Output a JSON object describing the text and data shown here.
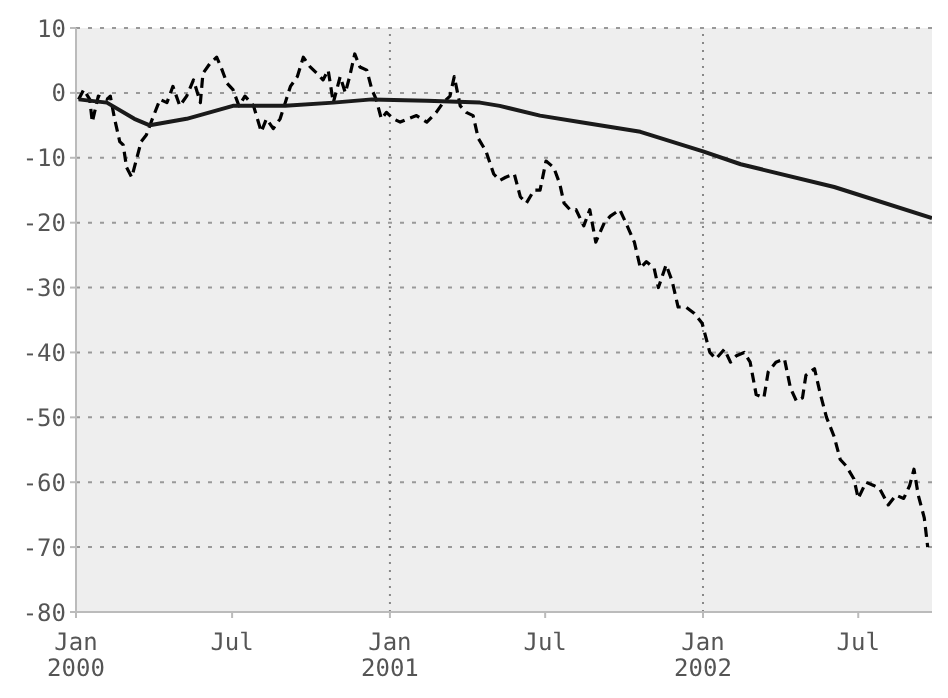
{
  "chart_data": {
    "type": "line",
    "xlim": [
      "2000-01-01",
      "2002-09-25"
    ],
    "ylim": [
      -80,
      10
    ],
    "xticks": [
      {
        "value": "2000-01-01",
        "label": "Jan\n2000"
      },
      {
        "value": "2000-07-01",
        "label": "Jul"
      },
      {
        "value": "2001-01-01",
        "label": "Jan\n2001"
      },
      {
        "value": "2001-07-01",
        "label": "Jul"
      },
      {
        "value": "2002-01-01",
        "label": "Jan\n2002"
      },
      {
        "value": "2002-07-01",
        "label": "Jul"
      }
    ],
    "yticks": [
      -80,
      -70,
      -60,
      -50,
      -40,
      -30,
      -20,
      -10,
      0,
      10
    ],
    "grid": "y",
    "ref_lines": [
      {
        "axis": "x",
        "value": "2001-01-01",
        "label": null,
        "color": "#888888",
        "line_style": "dotted"
      },
      {
        "axis": "x",
        "value": "2002-01-01",
        "label": null,
        "color": "#888888",
        "line_style": "dotted"
      }
    ],
    "series": [
      {
        "color": "#000000",
        "line_style": "dashed",
        "x": [
          "2000-01-04",
          "2000-01-10",
          "2000-01-17",
          "2000-01-20",
          "2000-01-27",
          "2000-02-06",
          "2000-02-10",
          "2000-02-15",
          "2000-02-21",
          "2000-02-25",
          "2000-02-29",
          "2000-03-06",
          "2000-03-12",
          "2000-03-17",
          "2000-03-23",
          "2000-03-30",
          "2000-04-08",
          "2000-04-16",
          "2000-04-23",
          "2000-05-01",
          "2000-05-09",
          "2000-05-17",
          "2000-05-25",
          "2000-05-28",
          "2000-06-05",
          "2000-06-13",
          "2000-06-18",
          "2000-06-25",
          "2000-07-02",
          "2000-07-09",
          "2000-07-16",
          "2000-07-26",
          "2000-08-04",
          "2000-08-10",
          "2000-08-18",
          "2000-08-26",
          "2000-09-01",
          "2000-09-07",
          "2000-09-15",
          "2000-09-22",
          "2000-09-30",
          "2000-10-08",
          "2000-10-15",
          "2000-10-21",
          "2000-10-27",
          "2000-11-04",
          "2000-11-10",
          "2000-11-15",
          "2000-11-21",
          "2000-11-27",
          "2000-12-05",
          "2000-12-11",
          "2000-12-16",
          "2000-12-22",
          "2000-12-28",
          "2001-01-05",
          "2001-01-13",
          "2001-01-22",
          "2001-02-01",
          "2001-02-13",
          "2001-02-24",
          "2001-03-04",
          "2001-03-12",
          "2001-03-17",
          "2001-03-24",
          "2001-03-31",
          "2001-04-08",
          "2001-04-14",
          "2001-04-23",
          "2001-05-02",
          "2001-05-09",
          "2001-05-16",
          "2001-05-26",
          "2001-06-02",
          "2001-06-09",
          "2001-06-18",
          "2001-06-25",
          "2001-07-02",
          "2001-07-11",
          "2001-07-18",
          "2001-07-23",
          "2001-07-30",
          "2001-08-06",
          "2001-08-15",
          "2001-08-22",
          "2001-08-29",
          "2001-09-08",
          "2001-09-15",
          "2001-09-26",
          "2001-10-03",
          "2001-10-13",
          "2001-10-20",
          "2001-10-27",
          "2001-11-05",
          "2001-11-10",
          "2001-11-19",
          "2001-11-26",
          "2001-12-03",
          "2001-12-12",
          "2001-12-22",
          "2001-12-31",
          "2002-01-09",
          "2002-01-16",
          "2002-01-26",
          "2002-02-02",
          "2002-02-09",
          "2002-02-18",
          "2002-02-25",
          "2002-03-04",
          "2002-03-13",
          "2002-03-18",
          "2002-03-27",
          "2002-04-06",
          "2002-04-13",
          "2002-04-20",
          "2002-04-27",
          "2002-05-01",
          "2002-05-11",
          "2002-05-18",
          "2002-05-25",
          "2002-06-03",
          "2002-06-10",
          "2002-06-17",
          "2002-06-26",
          "2002-07-01",
          "2002-07-10",
          "2002-07-19",
          "2002-07-26",
          "2002-08-05",
          "2002-08-14",
          "2002-08-23",
          "2002-08-30",
          "2002-09-04",
          "2002-09-09",
          "2002-09-16",
          "2002-09-20"
        ],
        "values": [
          -1,
          0.5,
          -1,
          -4.5,
          -0.5,
          -1,
          -0.5,
          -4,
          -7.5,
          -8,
          -11.5,
          -13,
          -10,
          -7.5,
          -6.5,
          -4,
          -1,
          -1.5,
          1,
          -2,
          -0.5,
          2,
          -1.5,
          3,
          4.5,
          5.5,
          4,
          1.5,
          0.5,
          -2,
          -0.5,
          -2,
          -6,
          -4,
          -5.5,
          -4,
          -1.5,
          1,
          2.5,
          5.5,
          4,
          3,
          2,
          3.5,
          -1.5,
          2.5,
          0,
          2.5,
          6,
          4,
          3.5,
          0.5,
          -1,
          -4,
          -3,
          -4,
          -4.5,
          -4,
          -3.5,
          -4.5,
          -3,
          -1.5,
          -0.5,
          2.5,
          -2,
          -3,
          -3.5,
          -7,
          -9,
          -12.5,
          -13.5,
          -13,
          -12.5,
          -16,
          -17,
          -15,
          -15,
          -10.5,
          -11.5,
          -14,
          -17,
          -18,
          -18,
          -20.5,
          -18,
          -23,
          -20,
          -19,
          -18,
          -20,
          -23,
          -27,
          -26,
          -27,
          -30,
          -26.5,
          -29,
          -33,
          -33,
          -34,
          -35.5,
          -40,
          -41,
          -39.5,
          -41.5,
          -40.5,
          -40,
          -41.5,
          -46.5,
          -47,
          -43,
          -41.5,
          -41,
          -45.5,
          -47.5,
          -47,
          -43.5,
          -42.5,
          -46.5,
          -50,
          -53,
          -56.5,
          -57.5,
          -59.5,
          -62.5,
          -60,
          -60.5,
          -61,
          -63.5,
          -62,
          -62.5,
          -60.5,
          -58,
          -62,
          -65.5,
          -70
        ]
      },
      {
        "color": "#1a1a1a",
        "line_style": "solid",
        "x": [
          "2000-01-04",
          "2000-02-06",
          "2000-03-09",
          "2000-03-27",
          "2000-05-09",
          "2000-07-02",
          "2000-09-01",
          "2000-10-27",
          "2000-12-11",
          "2001-02-13",
          "2001-04-16",
          "2001-05-09",
          "2001-06-25",
          "2001-08-10",
          "2001-10-20",
          "2002-01-01",
          "2002-02-14",
          "2002-06-03",
          "2002-09-25"
        ],
        "values": [
          -1,
          -1.5,
          -4,
          -5,
          -4,
          -2,
          -2,
          -1.5,
          -1,
          -1.2,
          -1.5,
          -2,
          -3.5,
          -4.5,
          -6,
          -9,
          -11,
          -14.5,
          -19.3
        ]
      }
    ]
  }
}
